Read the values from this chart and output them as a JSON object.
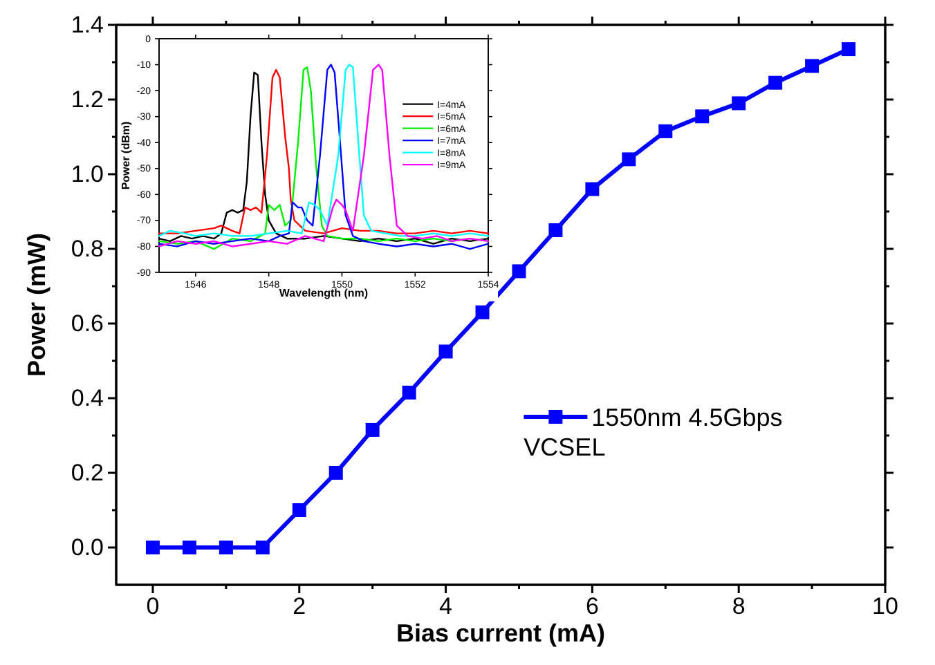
{
  "chart_data": [
    {
      "type": "line",
      "xlabel": "Bias current (mA)",
      "ylabel": "Power (mW)",
      "x": [
        0,
        0.5,
        1,
        1.5,
        2,
        2.5,
        3,
        3.5,
        4,
        4.5,
        5,
        5.5,
        6,
        6.5,
        7,
        7.5,
        8,
        8.5,
        9,
        9.5
      ],
      "series": [
        {
          "name": "1550nm 4.5Gbps VCSEL",
          "color": "#0000ff",
          "values": [
            0,
            0,
            0,
            0,
            0.1,
            0.2,
            0.315,
            0.415,
            0.525,
            0.63,
            0.74,
            0.85,
            0.96,
            1.04,
            1.115,
            1.155,
            1.19,
            1.245,
            1.29,
            1.335
          ]
        }
      ],
      "xlim": [
        -0.5,
        10
      ],
      "xticks": [
        0,
        {
          "value": 1,
          "label": null
        },
        2,
        {
          "value": 3,
          "label": null
        },
        4,
        {
          "value": 5,
          "label": null
        },
        6,
        {
          "value": 7,
          "label": null
        },
        8,
        {
          "value": 9,
          "label": null
        },
        10
      ],
      "ylim": [
        -0.1,
        1.4
      ],
      "yticks": [
        {
          "value": 0,
          "label": "0.0"
        },
        {
          "value": 0.1,
          "label": null
        },
        0.2,
        {
          "value": 0.3,
          "label": null
        },
        0.4,
        {
          "value": 0.5,
          "label": null
        },
        0.6,
        {
          "value": 0.7,
          "label": null
        },
        0.8,
        {
          "value": 0.9,
          "label": null
        },
        {
          "value": 1,
          "label": "1.0"
        },
        {
          "value": 1.1,
          "label": null
        },
        1.2,
        {
          "value": 1.3,
          "label": null
        },
        1.4
      ],
      "marker": "square",
      "line_style": "solid",
      "legend": "right",
      "grid": false
    },
    {
      "type": "line",
      "xlabel": "Wavelength (nm)",
      "ylabel": "Power (dBm)",
      "series": [
        {
          "name": "I=4mA",
          "color": "#000000",
          "x": [
            1545,
            1545.3,
            1545.6,
            1545.9,
            1546.2,
            1546.5,
            1546.7,
            1546.85,
            1547.0,
            1547.15,
            1547.3,
            1547.4,
            1547.5,
            1547.6,
            1547.7,
            1547.8,
            1547.9,
            1548.0,
            1548.2,
            1548.5,
            1549,
            1549.5,
            1550,
            1550.5,
            1551,
            1551.5,
            1552,
            1552.5,
            1553,
            1553.5,
            1554
          ],
          "values": [
            -77,
            -78,
            -76,
            -77,
            -76,
            -77,
            -75,
            -67,
            -66,
            -67,
            -66,
            -55,
            -30,
            -13,
            -14,
            -40,
            -60,
            -70,
            -75,
            -77,
            -77,
            -76,
            -77,
            -78,
            -77,
            -78,
            -77,
            -79,
            -77,
            -78,
            -77
          ]
        },
        {
          "name": "I=5mA",
          "color": "#ff0000",
          "x": [
            1545,
            1545.5,
            1546,
            1546.5,
            1546.7,
            1547,
            1547.2,
            1547.35,
            1547.5,
            1547.65,
            1547.8,
            1547.95,
            1548.1,
            1548.2,
            1548.3,
            1548.45,
            1548.55,
            1548.6,
            1548.7,
            1549,
            1549.5,
            1550,
            1550.5,
            1551,
            1551.5,
            1552,
            1552.5,
            1553,
            1553.5,
            1554
          ],
          "values": [
            -75,
            -75,
            -74,
            -73,
            -72,
            -74,
            -75,
            -65,
            -66,
            -65,
            -67,
            -45,
            -15,
            -12,
            -15,
            -38,
            -50,
            -62,
            -70,
            -74,
            -75,
            -73,
            -74,
            -74,
            -75,
            -75,
            -74,
            -75,
            -74,
            -75
          ]
        },
        {
          "name": "I=6mA",
          "color": "#00ee00",
          "x": [
            1545,
            1545.5,
            1546,
            1546.5,
            1547,
            1547.5,
            1547.9,
            1548.0,
            1548.15,
            1548.3,
            1548.45,
            1548.6,
            1548.8,
            1548.95,
            1549.05,
            1549.15,
            1549.3,
            1549.45,
            1549.6,
            1550,
            1550.5,
            1551,
            1551.5,
            1552,
            1552.5,
            1553,
            1553.5,
            1554
          ],
          "values": [
            -78,
            -79,
            -78,
            -81,
            -77,
            -78,
            -75,
            -64,
            -66,
            -64,
            -72,
            -70,
            -40,
            -12,
            -11,
            -20,
            -50,
            -72,
            -76,
            -77,
            -77,
            -78,
            -77,
            -78,
            -77,
            -78,
            -77,
            -78
          ]
        },
        {
          "name": "I=7mA",
          "color": "#0000ff",
          "x": [
            1545,
            1545.5,
            1546,
            1546.5,
            1547,
            1547.5,
            1548,
            1548.3,
            1548.55,
            1548.65,
            1548.8,
            1548.9,
            1549.05,
            1549.2,
            1549.4,
            1549.6,
            1549.7,
            1549.8,
            1549.95,
            1550.1,
            1550.3,
            1550.6,
            1551,
            1551.5,
            1552,
            1552.5,
            1553,
            1553.5,
            1554
          ],
          "values": [
            -79,
            -80,
            -78,
            -79,
            -78,
            -77,
            -78,
            -76,
            -75,
            -63,
            -65,
            -65,
            -70,
            -72,
            -45,
            -12,
            -10,
            -13,
            -40,
            -68,
            -76,
            -78,
            -79,
            -80,
            -79,
            -80,
            -79,
            -81,
            -79
          ]
        },
        {
          "name": "I=8mA",
          "color": "#00ffff",
          "x": [
            1545,
            1545.3,
            1545.7,
            1546,
            1546.5,
            1547,
            1547.5,
            1548,
            1548.5,
            1548.9,
            1549.1,
            1549.25,
            1549.4,
            1549.6,
            1549.9,
            1550.1,
            1550.2,
            1550.3,
            1550.45,
            1550.6,
            1550.8,
            1551.2,
            1551.6,
            1552,
            1552.5,
            1553,
            1553.5,
            1554
          ],
          "values": [
            -76,
            -74,
            -75,
            -76,
            -75,
            -76,
            -76,
            -75,
            -74,
            -75,
            -63,
            -64,
            -66,
            -72,
            -45,
            -12,
            -10,
            -11,
            -40,
            -68,
            -74,
            -75,
            -76,
            -76,
            -75,
            -76,
            -75,
            -76
          ]
        },
        {
          "name": "I=9mA",
          "color": "#ff00ff",
          "x": [
            1545,
            1545.5,
            1546,
            1546.5,
            1547,
            1547.5,
            1548,
            1548.5,
            1549,
            1549.5,
            1549.75,
            1549.85,
            1550.0,
            1550.1,
            1550.3,
            1550.6,
            1550.85,
            1551.0,
            1551.1,
            1551.3,
            1551.5,
            1551.8,
            1552.2,
            1552.6,
            1553,
            1553.5,
            1554
          ],
          "values": [
            -80,
            -78,
            -79,
            -78,
            -80,
            -79,
            -78,
            -79,
            -76,
            -78,
            -65,
            -62,
            -64,
            -66,
            -74,
            -45,
            -12,
            -10,
            -12,
            -45,
            -72,
            -76,
            -77,
            -76,
            -78,
            -77,
            -78
          ]
        }
      ],
      "xlim": [
        1545,
        1554
      ],
      "xticks": [
        1546,
        1548,
        1550,
        1552,
        1554
      ],
      "ylim": [
        -90,
        0
      ],
      "yticks": [
        -90,
        -80,
        -70,
        -60,
        -50,
        -40,
        -30,
        -20,
        -10,
        0
      ],
      "marker": "none",
      "line_style": "solid",
      "legend": "top right",
      "grid": false
    }
  ]
}
